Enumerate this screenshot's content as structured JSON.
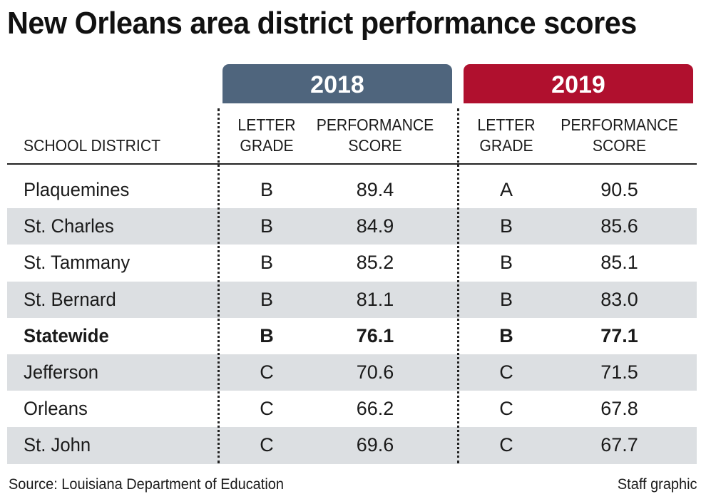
{
  "chart_data": {
    "type": "table",
    "title": "New Orleans area district performance scores",
    "year_headers": [
      "2018",
      "2019"
    ],
    "columns": {
      "district": "SCHOOL DISTRICT",
      "grade": [
        "LETTER",
        "GRADE"
      ],
      "score": [
        "PERFORMANCE",
        "SCORE"
      ]
    },
    "rows": [
      {
        "district": "Plaquemines",
        "grade_2018": "B",
        "score_2018": "89.4",
        "grade_2019": "A",
        "score_2019": "90.5"
      },
      {
        "district": "St. Charles",
        "grade_2018": "B",
        "score_2018": "84.9",
        "grade_2019": "B",
        "score_2019": "85.6"
      },
      {
        "district": "St. Tammany",
        "grade_2018": "B",
        "score_2018": "85.2",
        "grade_2019": "B",
        "score_2019": "85.1"
      },
      {
        "district": "St. Bernard",
        "grade_2018": "B",
        "score_2018": "81.1",
        "grade_2019": "B",
        "score_2019": "83.0"
      },
      {
        "district": "Statewide",
        "grade_2018": "B",
        "score_2018": "76.1",
        "grade_2019": "B",
        "score_2019": "77.1",
        "emphasis": true
      },
      {
        "district": "Jefferson",
        "grade_2018": "C",
        "score_2018": "70.6",
        "grade_2019": "C",
        "score_2019": "71.5"
      },
      {
        "district": "Orleans",
        "grade_2018": "C",
        "score_2018": "66.2",
        "grade_2019": "C",
        "score_2019": "67.8"
      },
      {
        "district": "St. John",
        "grade_2018": "C",
        "score_2018": "69.6",
        "grade_2019": "C",
        "score_2019": "67.7"
      }
    ],
    "colors": {
      "header_2018": "#4f657d",
      "header_2019": "#b0102e",
      "row_shade": "#dcdfe2"
    }
  },
  "footer": {
    "source": "Source: Louisiana Department of Education",
    "credit": "Staff graphic"
  }
}
